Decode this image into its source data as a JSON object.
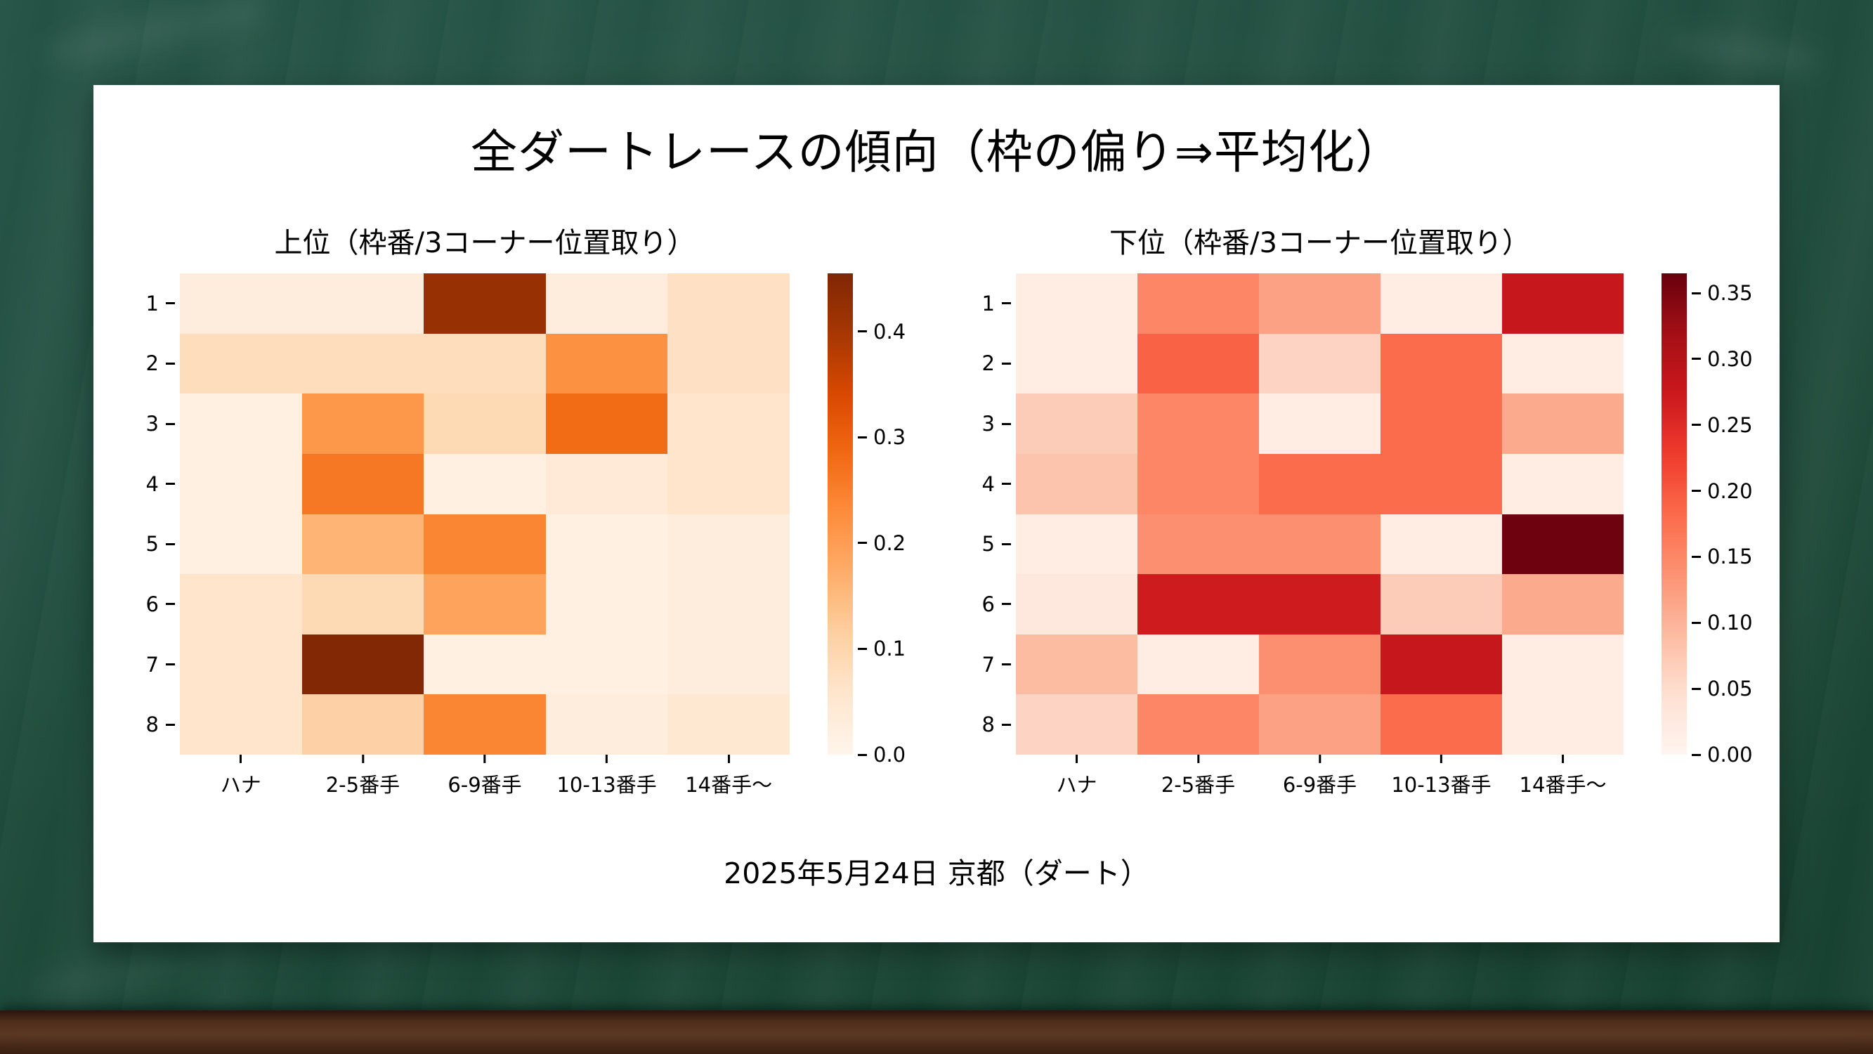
{
  "theme": {
    "board_green": "#1e4b3c",
    "tray_brown": "#4f2d1b",
    "card_background": "#ffffff",
    "text_color": "#000000"
  },
  "slide": {
    "title": "全ダートレースの傾向（枠の偏り⇒平均化）",
    "caption": "2025年5月24日 京都（ダート）"
  },
  "chart_data": [
    {
      "type": "heatmap",
      "title": "上位（枠番/3コーナー位置取り）",
      "rows": [
        "1",
        "2",
        "3",
        "4",
        "5",
        "6",
        "7",
        "8"
      ],
      "columns": [
        "ハナ",
        "2-5番手",
        "6-9番手",
        "10-13番手",
        "14番手〜"
      ],
      "values": [
        [
          0.03,
          0.03,
          0.42,
          0.03,
          0.07
        ],
        [
          0.08,
          0.08,
          0.08,
          0.22,
          0.07
        ],
        [
          0.02,
          0.21,
          0.09,
          0.28,
          0.06
        ],
        [
          0.02,
          0.26,
          0.02,
          0.04,
          0.06
        ],
        [
          0.02,
          0.16,
          0.24,
          0.02,
          0.03
        ],
        [
          0.06,
          0.09,
          0.19,
          0.02,
          0.03
        ],
        [
          0.06,
          0.45,
          0.02,
          0.02,
          0.03
        ],
        [
          0.06,
          0.11,
          0.24,
          0.03,
          0.05
        ]
      ],
      "vmin": 0.0,
      "vmax": 0.455,
      "colormap": "oranges",
      "colorbar_ticks": [
        {
          "label": "0.0",
          "value": 0.0
        },
        {
          "label": "0.1",
          "value": 0.1
        },
        {
          "label": "0.2",
          "value": 0.2
        },
        {
          "label": "0.3",
          "value": 0.3
        },
        {
          "label": "0.4",
          "value": 0.4
        }
      ],
      "legend_position": "right",
      "grid": false
    },
    {
      "type": "heatmap",
      "title": "下位（枠番/3コーナー位置取り）",
      "rows": [
        "1",
        "2",
        "3",
        "4",
        "5",
        "6",
        "7",
        "8"
      ],
      "columns": [
        "ハナ",
        "2-5番手",
        "6-9番手",
        "10-13番手",
        "14番手〜"
      ],
      "values": [
        [
          0.02,
          0.15,
          0.12,
          0.02,
          0.28
        ],
        [
          0.02,
          0.19,
          0.06,
          0.18,
          0.02
        ],
        [
          0.07,
          0.15,
          0.02,
          0.18,
          0.11
        ],
        [
          0.08,
          0.15,
          0.18,
          0.18,
          0.02
        ],
        [
          0.02,
          0.14,
          0.14,
          0.02,
          0.36
        ],
        [
          0.03,
          0.27,
          0.27,
          0.07,
          0.11
        ],
        [
          0.09,
          0.02,
          0.14,
          0.28,
          0.02
        ],
        [
          0.06,
          0.15,
          0.12,
          0.18,
          0.02
        ]
      ],
      "vmin": 0.0,
      "vmax": 0.365,
      "colormap": "reds",
      "colorbar_ticks": [
        {
          "label": "0.00",
          "value": 0.0
        },
        {
          "label": "0.05",
          "value": 0.05
        },
        {
          "label": "0.10",
          "value": 0.1
        },
        {
          "label": "0.15",
          "value": 0.15
        },
        {
          "label": "0.20",
          "value": 0.2
        },
        {
          "label": "0.25",
          "value": 0.25
        },
        {
          "label": "0.30",
          "value": 0.3
        },
        {
          "label": "0.35",
          "value": 0.35
        }
      ],
      "legend_position": "right",
      "grid": false
    }
  ]
}
